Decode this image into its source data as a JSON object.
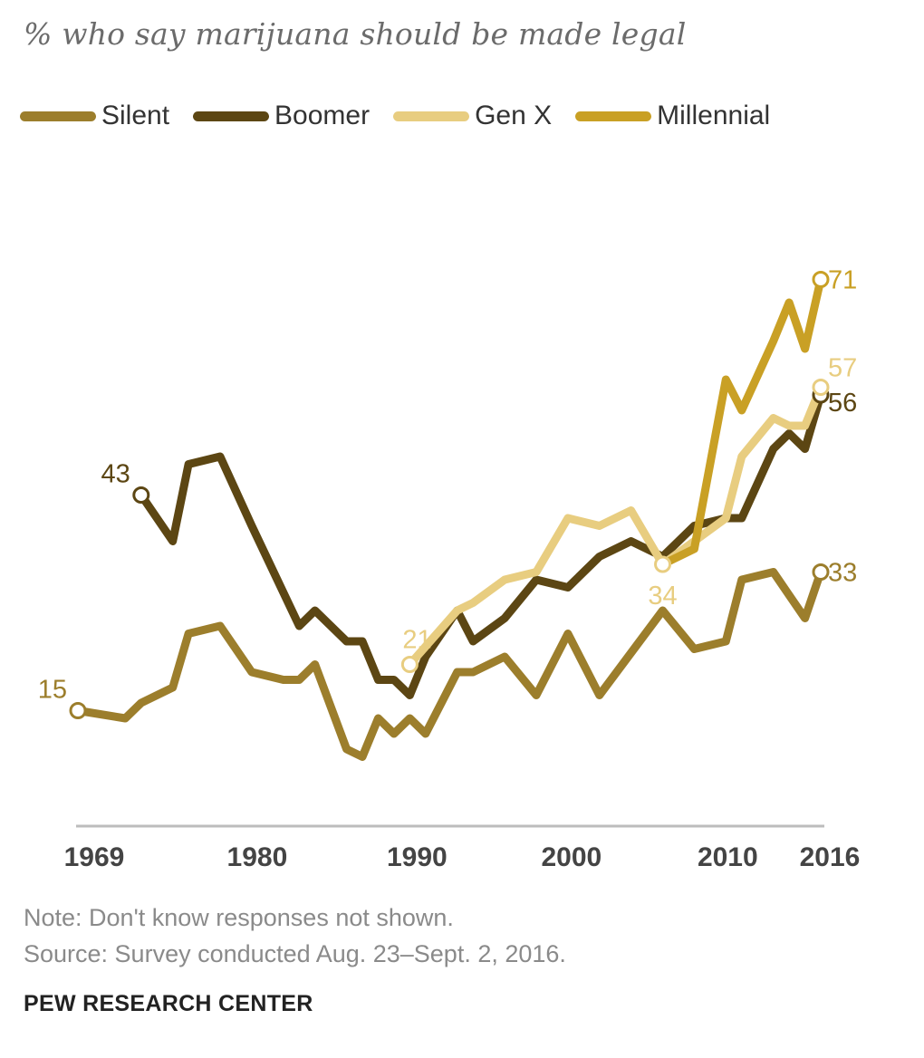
{
  "chart_data": {
    "type": "line",
    "title": "% who say marijuana should be made legal",
    "xlabel": "",
    "ylabel": "",
    "xlim": [
      1969,
      2016
    ],
    "ylim": [
      0,
      80
    ],
    "x_ticks": [
      {
        "value": 1969,
        "label": "1969"
      },
      {
        "value": 1980,
        "label": "1980"
      },
      {
        "value": 1990,
        "label": "1990"
      },
      {
        "value": 2000,
        "label": "2000"
      },
      {
        "value": 2010,
        "label": "2010"
      },
      {
        "value": 2016,
        "label": "2016"
      }
    ],
    "series": [
      {
        "name": "Silent",
        "color": "#9c7e2c",
        "points": [
          [
            1969,
            15
          ],
          [
            1972,
            14
          ],
          [
            1973,
            16
          ],
          [
            1975,
            18
          ],
          [
            1976,
            25
          ],
          [
            1978,
            26
          ],
          [
            1980,
            20
          ],
          [
            1982,
            19
          ],
          [
            1983,
            19
          ],
          [
            1984,
            21
          ],
          [
            1986,
            10
          ],
          [
            1987,
            9
          ],
          [
            1988,
            14
          ],
          [
            1989,
            12
          ],
          [
            1990,
            14
          ],
          [
            1991,
            12
          ],
          [
            1993,
            20
          ],
          [
            1994,
            20
          ],
          [
            1996,
            22
          ],
          [
            1998,
            17
          ],
          [
            2000,
            25
          ],
          [
            2002,
            17
          ],
          [
            2006,
            28
          ],
          [
            2008,
            23
          ],
          [
            2010,
            24
          ],
          [
            2011,
            32
          ],
          [
            2013,
            33
          ],
          [
            2014,
            30
          ],
          [
            2015,
            27
          ],
          [
            2016,
            33
          ]
        ],
        "start_label": "15",
        "end_label": "33"
      },
      {
        "name": "Boomer",
        "color": "#5c4613",
        "points": [
          [
            1973,
            43
          ],
          [
            1975,
            37
          ],
          [
            1976,
            47
          ],
          [
            1978,
            48
          ],
          [
            1980,
            39
          ],
          [
            1983,
            26
          ],
          [
            1984,
            28
          ],
          [
            1986,
            24
          ],
          [
            1987,
            24
          ],
          [
            1988,
            19
          ],
          [
            1989,
            19
          ],
          [
            1990,
            17
          ],
          [
            1991,
            22
          ],
          [
            1993,
            28
          ],
          [
            1994,
            24
          ],
          [
            1996,
            27
          ],
          [
            1998,
            32
          ],
          [
            2000,
            31
          ],
          [
            2002,
            35
          ],
          [
            2004,
            37
          ],
          [
            2006,
            35
          ],
          [
            2008,
            39
          ],
          [
            2010,
            40
          ],
          [
            2011,
            40
          ],
          [
            2013,
            49
          ],
          [
            2014,
            51
          ],
          [
            2015,
            49
          ],
          [
            2016,
            56
          ]
        ],
        "start_label": "43",
        "end_label": "56"
      },
      {
        "name": "Gen X",
        "color": "#e8cd80",
        "points": [
          [
            1990,
            21
          ],
          [
            1993,
            28
          ],
          [
            1994,
            29
          ],
          [
            1996,
            32
          ],
          [
            1998,
            33
          ],
          [
            2000,
            40
          ],
          [
            2002,
            39
          ],
          [
            2004,
            41
          ],
          [
            2006,
            34
          ],
          [
            2008,
            37
          ],
          [
            2010,
            40
          ],
          [
            2011,
            48
          ],
          [
            2013,
            53
          ],
          [
            2014,
            52
          ],
          [
            2015,
            52
          ],
          [
            2016,
            57
          ]
        ],
        "start_label": "21",
        "mid_label": "34",
        "end_label": "57"
      },
      {
        "name": "Millennial",
        "color": "#c9a025",
        "points": [
          [
            2006,
            34
          ],
          [
            2008,
            36
          ],
          [
            2010,
            58
          ],
          [
            2011,
            54
          ],
          [
            2013,
            63
          ],
          [
            2014,
            68
          ],
          [
            2015,
            62
          ],
          [
            2016,
            71
          ]
        ],
        "end_label": "71"
      }
    ]
  },
  "footer": {
    "note": "Note: Don't know responses not shown.",
    "source": "Source: Survey conducted Aug. 23–Sept. 2, 2016.",
    "brand": "PEW RESEARCH CENTER"
  }
}
